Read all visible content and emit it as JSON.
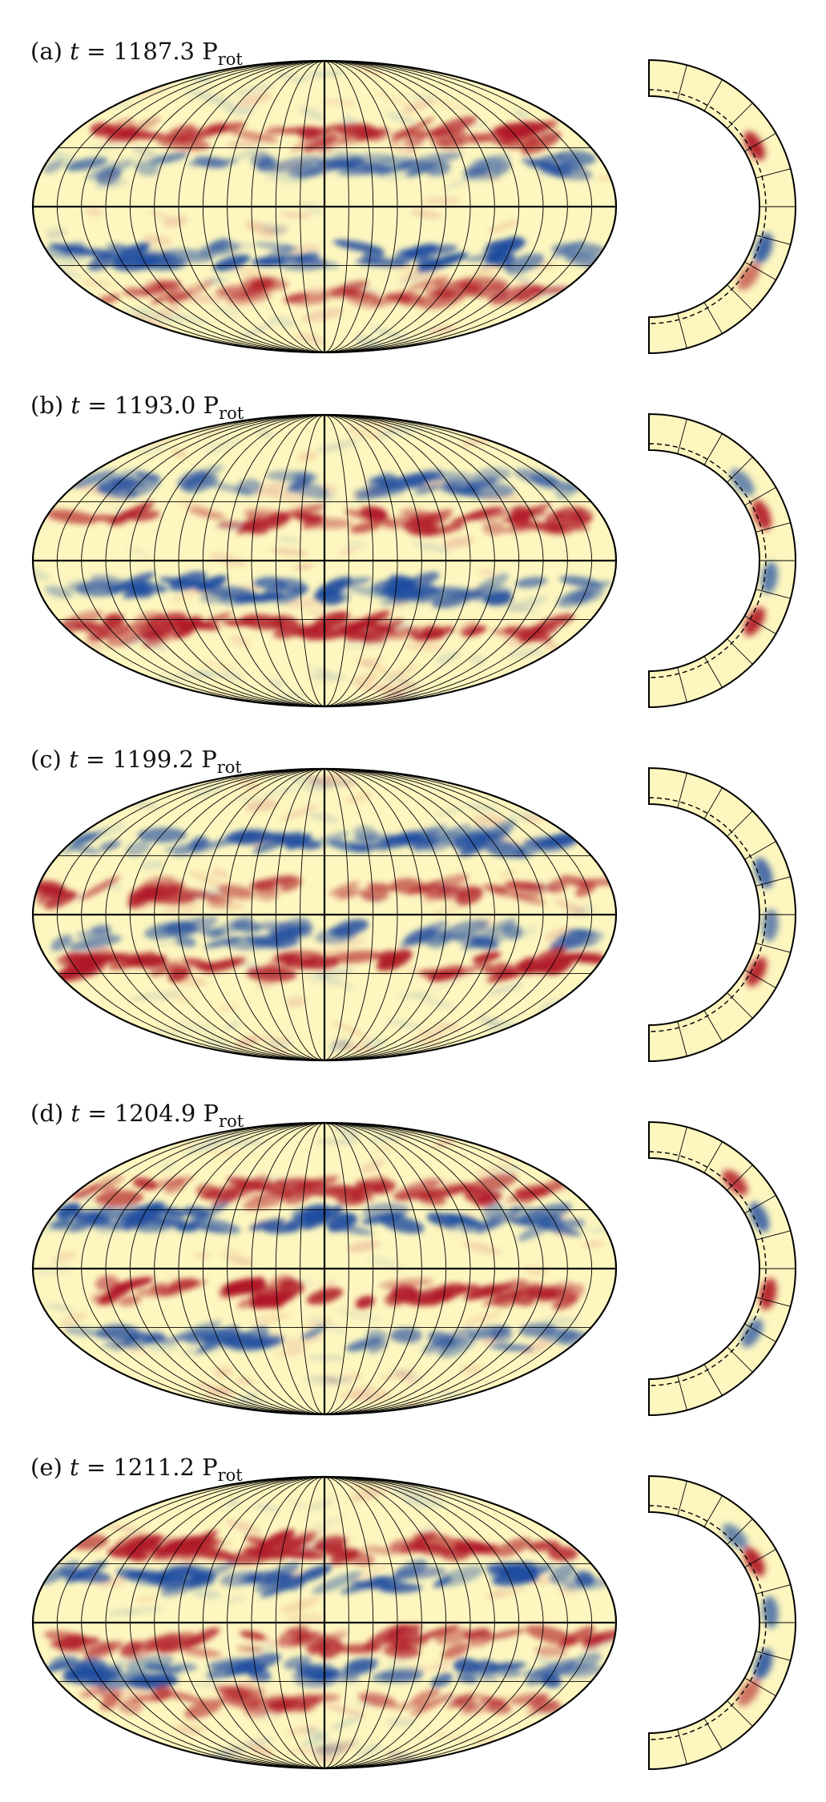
{
  "panels": [
    {
      "letter": "(a)",
      "time_value": "1187.3",
      "unit": "P",
      "unit_sub": "rot",
      "bands": [
        {
          "lat": 37,
          "sign": 1,
          "strength": 0.9
        },
        {
          "lat": 20,
          "sign": -1,
          "strength": 0.6
        },
        {
          "lat": -24,
          "sign": -1,
          "strength": 1.0
        },
        {
          "lat": -44,
          "sign": 1,
          "strength": 0.5
        }
      ],
      "slice": [
        {
          "lat": 30,
          "sign": 1,
          "strength": 1.0
        },
        {
          "lat": -20,
          "sign": -1,
          "strength": 0.8
        },
        {
          "lat": -35,
          "sign": 1,
          "strength": 0.3
        }
      ]
    },
    {
      "letter": "(b)",
      "time_value": "1193.0",
      "unit": "P",
      "unit_sub": "rot",
      "bands": [
        {
          "lat": 40,
          "sign": -1,
          "strength": 0.5
        },
        {
          "lat": 20,
          "sign": 1,
          "strength": 0.9
        },
        {
          "lat": -15,
          "sign": -1,
          "strength": 1.0
        },
        {
          "lat": -35,
          "sign": 1,
          "strength": 0.95
        }
      ],
      "slice": [
        {
          "lat": 22,
          "sign": 1,
          "strength": 0.9
        },
        {
          "lat": 40,
          "sign": -1,
          "strength": 0.4
        },
        {
          "lat": -8,
          "sign": -1,
          "strength": 0.5
        },
        {
          "lat": -30,
          "sign": 1,
          "strength": 0.9
        }
      ]
    },
    {
      "letter": "(c)",
      "time_value": "1199.2",
      "unit": "P",
      "unit_sub": "rot",
      "bands": [
        {
          "lat": 38,
          "sign": -1,
          "strength": 0.8
        },
        {
          "lat": 12,
          "sign": 1,
          "strength": 0.8
        },
        {
          "lat": -10,
          "sign": -1,
          "strength": 0.6
        },
        {
          "lat": -26,
          "sign": 1,
          "strength": 1.0
        }
      ],
      "slice": [
        {
          "lat": 20,
          "sign": -1,
          "strength": 0.7
        },
        {
          "lat": -5,
          "sign": -1,
          "strength": 0.4
        },
        {
          "lat": -28,
          "sign": 1,
          "strength": 0.9
        }
      ]
    },
    {
      "letter": "(d)",
      "time_value": "1204.9",
      "unit": "P",
      "unit_sub": "rot",
      "bands": [
        {
          "lat": 40,
          "sign": 1,
          "strength": 0.8
        },
        {
          "lat": 25,
          "sign": -1,
          "strength": 1.0
        },
        {
          "lat": -12,
          "sign": 1,
          "strength": 1.0
        },
        {
          "lat": -36,
          "sign": -1,
          "strength": 0.6
        }
      ],
      "slice": [
        {
          "lat": 45,
          "sign": 1,
          "strength": 0.8
        },
        {
          "lat": 25,
          "sign": -1,
          "strength": 0.7
        },
        {
          "lat": -12,
          "sign": 1,
          "strength": 0.9
        },
        {
          "lat": -32,
          "sign": -1,
          "strength": 0.5
        }
      ]
    },
    {
      "letter": "(e)",
      "time_value": "1211.2",
      "unit": "P",
      "unit_sub": "rot",
      "bands": [
        {
          "lat": 38,
          "sign": 1,
          "strength": 1.0
        },
        {
          "lat": 22,
          "sign": -1,
          "strength": 0.9
        },
        {
          "lat": -10,
          "sign": 1,
          "strength": 0.8
        },
        {
          "lat": -25,
          "sign": -1,
          "strength": 0.9
        },
        {
          "lat": -40,
          "sign": 1,
          "strength": 0.4
        }
      ],
      "slice": [
        {
          "lat": 30,
          "sign": 1,
          "strength": 1.0
        },
        {
          "lat": 45,
          "sign": -1,
          "strength": 0.4
        },
        {
          "lat": 5,
          "sign": -1,
          "strength": 0.5
        },
        {
          "lat": -20,
          "sign": -1,
          "strength": 0.8
        },
        {
          "lat": -35,
          "sign": 1,
          "strength": 0.3
        }
      ]
    }
  ],
  "colors": {
    "background": "#fdf6bf",
    "positive": "#b01a26",
    "negative": "#1f4ca0",
    "grid": "#000000"
  }
}
